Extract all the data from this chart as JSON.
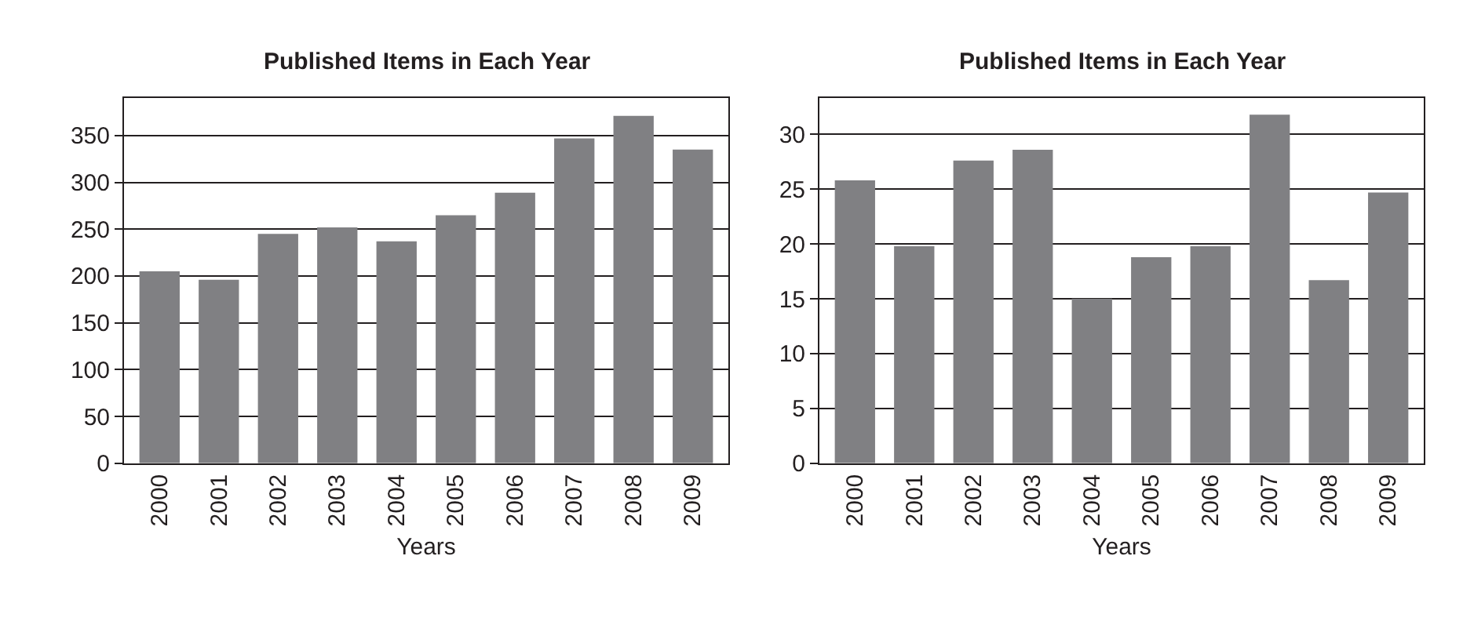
{
  "chart_data": [
    {
      "type": "bar",
      "title": "Published Items in Each Year",
      "xlabel": "Years",
      "categories": [
        "2000",
        "2001",
        "2002",
        "2003",
        "2004",
        "2005",
        "2006",
        "2007",
        "2008",
        "2009"
      ],
      "values": [
        205,
        196,
        245,
        252,
        237,
        265,
        289,
        347,
        371,
        335
      ],
      "color": "#808083",
      "ylim": [
        0,
        390
      ],
      "yticks": [
        0,
        50,
        100,
        150,
        200,
        250,
        300,
        350
      ],
      "grid": "y"
    },
    {
      "type": "bar",
      "title": "Published Items in Each Year",
      "xlabel": "Years",
      "categories": [
        "2000",
        "2001",
        "2002",
        "2003",
        "2004",
        "2005",
        "2006",
        "2007",
        "2008",
        "2009"
      ],
      "values": [
        25.8,
        19.8,
        27.6,
        28.6,
        15.0,
        18.8,
        19.8,
        31.8,
        16.7,
        24.7
      ],
      "color": "#808083",
      "ylim": [
        0,
        33.3
      ],
      "yticks": [
        0,
        5,
        10,
        15,
        20,
        25,
        30
      ],
      "grid": "y"
    }
  ]
}
